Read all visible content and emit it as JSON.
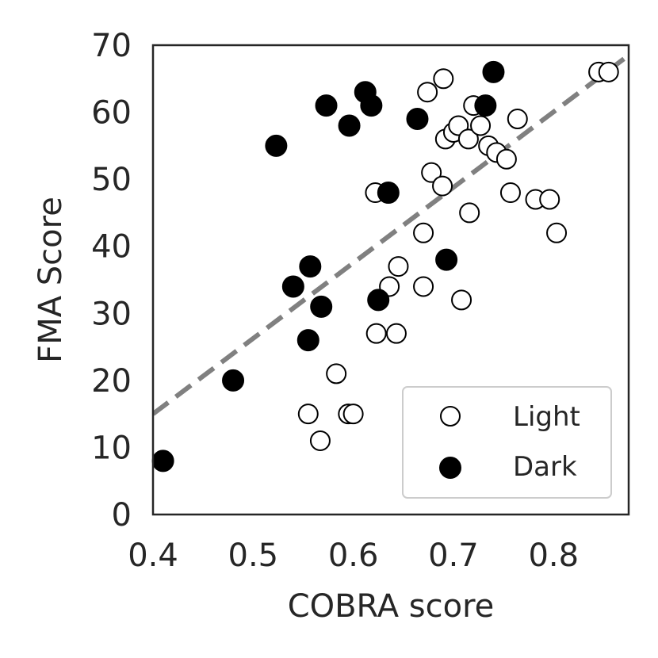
{
  "chart_data": {
    "type": "scatter",
    "xlabel": "COBRA score",
    "ylabel": "FMA Score",
    "xlim": [
      0.4,
      0.875
    ],
    "ylim": [
      0,
      70
    ],
    "xticks": [
      "0.4",
      "0.5",
      "0.6",
      "0.7",
      "0.8"
    ],
    "yticks": [
      "0",
      "10",
      "20",
      "30",
      "40",
      "50",
      "60",
      "70"
    ],
    "grid": false,
    "legend_position": "bottom-right",
    "reference_line": {
      "style": "dashed",
      "color": "#808080",
      "points": [
        [
          0.4,
          15
        ],
        [
          0.875,
          68.5
        ]
      ]
    },
    "series": [
      {
        "name": "Light",
        "marker": "open-circle",
        "color": "#000000",
        "points": [
          [
            0.555,
            15
          ],
          [
            0.567,
            11
          ],
          [
            0.583,
            21
          ],
          [
            0.595,
            15
          ],
          [
            0.6,
            15
          ],
          [
            0.622,
            48
          ],
          [
            0.623,
            27
          ],
          [
            0.636,
            34
          ],
          [
            0.643,
            27
          ],
          [
            0.645,
            37
          ],
          [
            0.67,
            42
          ],
          [
            0.67,
            34
          ],
          [
            0.674,
            63
          ],
          [
            0.678,
            51
          ],
          [
            0.689,
            49
          ],
          [
            0.69,
            65
          ],
          [
            0.692,
            56
          ],
          [
            0.7,
            57
          ],
          [
            0.705,
            58
          ],
          [
            0.708,
            32
          ],
          [
            0.715,
            56
          ],
          [
            0.716,
            45
          ],
          [
            0.72,
            61
          ],
          [
            0.727,
            58
          ],
          [
            0.735,
            55
          ],
          [
            0.743,
            54
          ],
          [
            0.753,
            53
          ],
          [
            0.757,
            48
          ],
          [
            0.764,
            59
          ],
          [
            0.782,
            47
          ],
          [
            0.796,
            47
          ],
          [
            0.803,
            42
          ],
          [
            0.845,
            66
          ],
          [
            0.855,
            66
          ]
        ]
      },
      {
        "name": "Dark",
        "marker": "filled-circle",
        "color": "#000000",
        "points": [
          [
            0.41,
            8
          ],
          [
            0.48,
            20
          ],
          [
            0.523,
            55
          ],
          [
            0.54,
            34
          ],
          [
            0.555,
            26
          ],
          [
            0.557,
            37
          ],
          [
            0.568,
            31
          ],
          [
            0.573,
            61
          ],
          [
            0.596,
            58
          ],
          [
            0.612,
            63
          ],
          [
            0.618,
            61
          ],
          [
            0.625,
            32
          ],
          [
            0.635,
            48
          ],
          [
            0.664,
            59
          ],
          [
            0.693,
            38
          ],
          [
            0.732,
            61
          ],
          [
            0.74,
            66
          ]
        ]
      }
    ]
  }
}
